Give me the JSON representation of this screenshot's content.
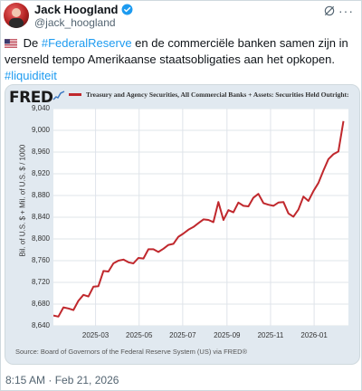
{
  "tweet": {
    "author_name": "Jack Hoogland",
    "handle": "@jack_hoogland",
    "text_before_link1": " De ",
    "link1": "#FederalReserve",
    "text_after_link1": " en de commerciële banken samen zijn in versneld tempo Amerikaanse staatsobligaties aan het opkopen. ",
    "link2": "#liquiditeit",
    "timestamp": "8:15 AM · Feb 21, 2026",
    "link_color": "#1d9bf0"
  },
  "chart": {
    "brand": "FRED",
    "legend": "Treasury and Agency Securities, All Commercial Banks + Assets: Securities Held Outright:",
    "ylabel": "Bil. of U.S. $ + Mil. of U.S. $ / 1000",
    "source": "Source: Board of Governors of the Federal Reserve System (US) via FRED®",
    "line_color": "#c0282d"
  },
  "chart_data": {
    "type": "line",
    "title": "",
    "xlabel": "",
    "ylabel": "Bil. of U.S. $ + Mil. of U.S. $ / 1000",
    "ylim": [
      8640,
      9040
    ],
    "xlim": [
      "2025-01-01",
      "2026-02-18"
    ],
    "y_ticks": [
      "8,640",
      "8,680",
      "8,720",
      "8,760",
      "8,800",
      "8,840",
      "8,880",
      "8,920",
      "8,960",
      "9,000",
      "9,040"
    ],
    "x_ticks": [
      "2025-03",
      "2025-05",
      "2025-07",
      "2025-09",
      "2025-11",
      "2026-01"
    ],
    "x_tick_dates": [
      "2025-03-01",
      "2025-05-01",
      "2025-07-01",
      "2025-09-01",
      "2025-11-01",
      "2026-01-01"
    ],
    "grid": true,
    "legend_position": "top",
    "series": [
      {
        "name": "Treasury and Agency Securities, All Commercial Banks + Assets: Securities Held Outright:",
        "points": [
          [
            "2025-01-01",
            8659
          ],
          [
            "2025-01-08",
            8657
          ],
          [
            "2025-01-15",
            8674
          ],
          [
            "2025-01-22",
            8672
          ],
          [
            "2025-01-29",
            8669
          ],
          [
            "2025-02-05",
            8686
          ],
          [
            "2025-02-12",
            8697
          ],
          [
            "2025-02-19",
            8694
          ],
          [
            "2025-02-26",
            8712
          ],
          [
            "2025-03-05",
            8713
          ],
          [
            "2025-03-12",
            8741
          ],
          [
            "2025-03-19",
            8740
          ],
          [
            "2025-03-26",
            8755
          ],
          [
            "2025-04-02",
            8760
          ],
          [
            "2025-04-09",
            8762
          ],
          [
            "2025-04-16",
            8757
          ],
          [
            "2025-04-23",
            8755
          ],
          [
            "2025-04-30",
            8765
          ],
          [
            "2025-05-07",
            8764
          ],
          [
            "2025-05-14",
            8781
          ],
          [
            "2025-05-21",
            8781
          ],
          [
            "2025-05-28",
            8776
          ],
          [
            "2025-06-04",
            8782
          ],
          [
            "2025-06-11",
            8789
          ],
          [
            "2025-06-18",
            8791
          ],
          [
            "2025-06-25",
            8804
          ],
          [
            "2025-07-02",
            8810
          ],
          [
            "2025-07-09",
            8817
          ],
          [
            "2025-07-16",
            8822
          ],
          [
            "2025-07-23",
            8829
          ],
          [
            "2025-07-30",
            8836
          ],
          [
            "2025-08-06",
            8835
          ],
          [
            "2025-08-13",
            8831
          ],
          [
            "2025-08-20",
            8868
          ],
          [
            "2025-08-27",
            8835
          ],
          [
            "2025-09-03",
            8853
          ],
          [
            "2025-09-10",
            8849
          ],
          [
            "2025-09-17",
            8867
          ],
          [
            "2025-09-24",
            8861
          ],
          [
            "2025-10-01",
            8860
          ],
          [
            "2025-10-08",
            8876
          ],
          [
            "2025-10-15",
            8883
          ],
          [
            "2025-10-22",
            8866
          ],
          [
            "2025-10-29",
            8863
          ],
          [
            "2025-11-05",
            8861
          ],
          [
            "2025-11-12",
            8867
          ],
          [
            "2025-11-19",
            8868
          ],
          [
            "2025-11-26",
            8847
          ],
          [
            "2025-12-03",
            8841
          ],
          [
            "2025-12-10",
            8854
          ],
          [
            "2025-12-17",
            8878
          ],
          [
            "2025-12-24",
            8870
          ],
          [
            "2025-12-31",
            8888
          ],
          [
            "2026-01-07",
            8903
          ],
          [
            "2026-01-14",
            8926
          ],
          [
            "2026-01-21",
            8947
          ],
          [
            "2026-01-28",
            8956
          ],
          [
            "2026-02-04",
            8961
          ],
          [
            "2026-02-11",
            9017
          ]
        ]
      }
    ]
  }
}
